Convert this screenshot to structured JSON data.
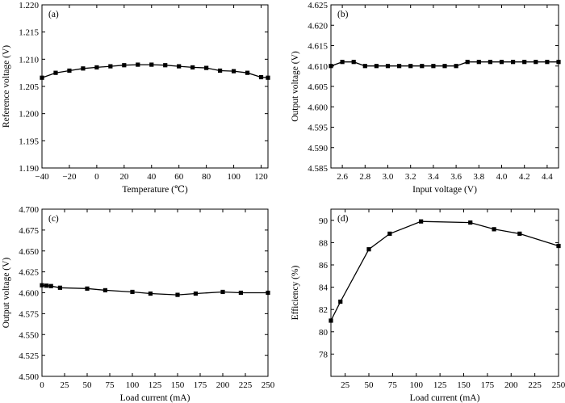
{
  "chart_data": [
    {
      "type": "line",
      "panel_label": "(a)",
      "xlabel": "Temperature (℃)",
      "ylabel": "Reference voltage (V)",
      "xlim": [
        -40,
        125
      ],
      "ylim": [
        1.19,
        1.22
      ],
      "xticks": [
        -40,
        -20,
        0,
        20,
        40,
        60,
        80,
        100,
        120
      ],
      "yticks": [
        1.19,
        1.195,
        1.2,
        1.205,
        1.21,
        1.215,
        1.22
      ],
      "xtick_labels": [
        "−40",
        "−20",
        "0",
        "20",
        "40",
        "60",
        "80",
        "100",
        "120"
      ],
      "ytick_labels": [
        "1.190",
        "1.195",
        "1.200",
        "1.205",
        "1.210",
        "1.215",
        "1.220"
      ],
      "x": [
        -40,
        -30,
        -20,
        -10,
        0,
        10,
        20,
        30,
        40,
        50,
        60,
        70,
        80,
        90,
        100,
        110,
        120,
        125
      ],
      "y": [
        1.2066,
        1.2075,
        1.2079,
        1.2083,
        1.2085,
        1.2087,
        1.2089,
        1.209,
        1.209,
        1.2089,
        1.2087,
        1.2085,
        1.2084,
        1.2079,
        1.2078,
        1.2075,
        1.2067,
        1.2066
      ]
    },
    {
      "type": "line",
      "panel_label": "(b)",
      "xlabel": "Input voltage (V)",
      "ylabel": "Output voltage (V)",
      "xlim": [
        2.5,
        4.5
      ],
      "ylim": [
        4.585,
        4.625
      ],
      "xticks": [
        2.6,
        2.8,
        3.0,
        3.2,
        3.4,
        3.6,
        3.8,
        4.0,
        4.2,
        4.4
      ],
      "yticks": [
        4.585,
        4.59,
        4.595,
        4.6,
        4.605,
        4.61,
        4.615,
        4.62,
        4.625
      ],
      "xtick_labels": [
        "2.6",
        "2.8",
        "3.0",
        "3.2",
        "3.4",
        "3.6",
        "3.8",
        "4.0",
        "4.2",
        "4.4"
      ],
      "ytick_labels": [
        "4.585",
        "4.590",
        "4.595",
        "4.600",
        "4.605",
        "4.610",
        "4.615",
        "4.620",
        "4.625"
      ],
      "x": [
        2.5,
        2.6,
        2.7,
        2.8,
        2.9,
        3.0,
        3.1,
        3.2,
        3.3,
        3.4,
        3.5,
        3.6,
        3.7,
        3.8,
        3.9,
        4.0,
        4.1,
        4.2,
        4.3,
        4.4,
        4.5
      ],
      "y": [
        4.61,
        4.611,
        4.611,
        4.61,
        4.61,
        4.61,
        4.61,
        4.61,
        4.61,
        4.61,
        4.61,
        4.61,
        4.611,
        4.611,
        4.611,
        4.611,
        4.611,
        4.611,
        4.611,
        4.611,
        4.611
      ]
    },
    {
      "type": "line",
      "panel_label": "(c)",
      "xlabel": "Load current (mA)",
      "ylabel": "Output voltage (V)",
      "xlim": [
        0,
        250
      ],
      "ylim": [
        4.5,
        4.7
      ],
      "xticks": [
        0,
        25,
        50,
        75,
        100,
        125,
        150,
        175,
        200,
        225,
        250
      ],
      "yticks": [
        4.5,
        4.525,
        4.55,
        4.575,
        4.6,
        4.625,
        4.65,
        4.675,
        4.7
      ],
      "xtick_labels": [
        "0",
        "25",
        "50",
        "75",
        "100",
        "125",
        "150",
        "175",
        "200",
        "225",
        "250"
      ],
      "ytick_labels": [
        "4.500",
        "4.525",
        "4.550",
        "4.575",
        "4.600",
        "4.625",
        "4.650",
        "4.675",
        "4.700"
      ],
      "x": [
        0,
        5,
        10,
        20,
        50,
        70,
        100,
        120,
        150,
        170,
        200,
        220,
        250
      ],
      "y": [
        4.609,
        4.6085,
        4.608,
        4.606,
        4.605,
        4.603,
        4.601,
        4.599,
        4.5975,
        4.599,
        4.601,
        4.6,
        4.6
      ]
    },
    {
      "type": "line",
      "panel_label": "(d)",
      "xlabel": "Load current (mA)",
      "ylabel": "Efficiency (%)",
      "xlim": [
        10,
        250
      ],
      "ylim": [
        76,
        91
      ],
      "xticks": [
        25,
        50,
        75,
        100,
        125,
        150,
        175,
        200,
        225,
        250
      ],
      "yticks": [
        78,
        80,
        82,
        84,
        86,
        88,
        90
      ],
      "xtick_labels": [
        "25",
        "50",
        "75",
        "100",
        "125",
        "150",
        "175",
        "200",
        "225",
        "250"
      ],
      "ytick_labels": [
        "78",
        "80",
        "82",
        "84",
        "86",
        "88",
        "90"
      ],
      "x": [
        10,
        20,
        50,
        72,
        105,
        157,
        182,
        209,
        250
      ],
      "y": [
        81.0,
        82.7,
        87.4,
        88.8,
        89.9,
        89.8,
        89.2,
        88.8,
        87.7
      ]
    }
  ]
}
